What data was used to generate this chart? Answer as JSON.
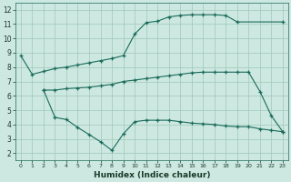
{
  "xlabel": "Humidex (Indice chaleur)",
  "background_color": "#cce8e0",
  "grid_color": "#a0c8b8",
  "line_color": "#1a6b5a",
  "xlim": [
    -0.5,
    23.5
  ],
  "ylim": [
    1.5,
    12.5
  ],
  "xticks": [
    0,
    1,
    2,
    3,
    4,
    5,
    6,
    7,
    8,
    9,
    10,
    11,
    12,
    13,
    14,
    15,
    16,
    17,
    18,
    19,
    20,
    21,
    22,
    23
  ],
  "yticks": [
    2,
    3,
    4,
    5,
    6,
    7,
    8,
    9,
    10,
    11,
    12
  ],
  "curves": [
    {
      "x": [
        0,
        1,
        2,
        3,
        4,
        5,
        6,
        7,
        8,
        9,
        10,
        11,
        12,
        13,
        14,
        15,
        16,
        17,
        18,
        19,
        23
      ],
      "y": [
        8.8,
        7.5,
        7.7,
        7.9,
        8.0,
        8.15,
        8.3,
        8.45,
        8.6,
        8.8,
        10.3,
        11.1,
        11.2,
        11.5,
        11.6,
        11.65,
        11.65,
        11.65,
        11.6,
        11.15,
        11.15
      ]
    },
    {
      "x": [
        2,
        3,
        4,
        5,
        6,
        7,
        8,
        9,
        10,
        11,
        12,
        13,
        14,
        15,
        16,
        17,
        18,
        19,
        20,
        21,
        22,
        23
      ],
      "y": [
        6.4,
        6.4,
        6.5,
        6.55,
        6.6,
        6.7,
        6.8,
        7.0,
        7.1,
        7.2,
        7.3,
        7.4,
        7.5,
        7.6,
        7.65,
        7.65,
        7.65,
        7.65,
        7.65,
        6.3,
        4.6,
        3.5
      ]
    },
    {
      "x": [
        2,
        3,
        4,
        5,
        6,
        7,
        8,
        9,
        10,
        11,
        12,
        13,
        14,
        15,
        16,
        17,
        18,
        19,
        20,
        21,
        22,
        23
      ],
      "y": [
        6.4,
        4.5,
        4.35,
        3.8,
        3.3,
        2.8,
        2.2,
        3.35,
        4.2,
        4.3,
        4.3,
        4.3,
        4.2,
        4.1,
        4.05,
        4.0,
        3.9,
        3.85,
        3.85,
        3.7,
        3.6,
        3.5
      ]
    }
  ]
}
